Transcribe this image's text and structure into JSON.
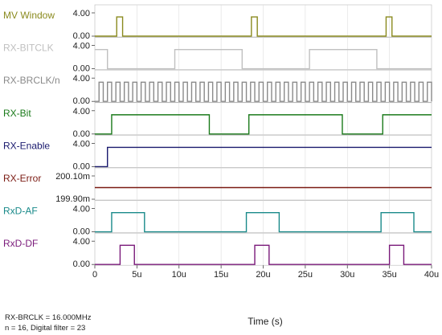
{
  "chart_data": {
    "type": "line",
    "xlabel": "Time (s)",
    "x_ticks": [
      "0",
      "5u",
      "10u",
      "15u",
      "20u",
      "25u",
      "30u",
      "35u",
      "40u"
    ],
    "xlim_us": [
      0,
      40
    ],
    "grid": true,
    "panels": [
      {
        "name": "MV Window",
        "color": "#8a8a1e",
        "y_ticks": [
          "4.00",
          "0.00"
        ],
        "ylim": [
          0,
          4
        ],
        "steps": [
          [
            0,
            0
          ],
          [
            2.6,
            3.3
          ],
          [
            3.3,
            0
          ],
          [
            18.6,
            3.3
          ],
          [
            19.3,
            0
          ],
          [
            34.6,
            3.3
          ],
          [
            35.3,
            0
          ],
          [
            40,
            0
          ]
        ]
      },
      {
        "name": "RX-BITCLK",
        "color": "#c0c0c0",
        "y_ticks": [
          "4.00",
          "0.00"
        ],
        "ylim": [
          0,
          4
        ],
        "steps": [
          [
            0,
            3.3
          ],
          [
            1.5,
            0
          ],
          [
            9.5,
            3.3
          ],
          [
            17.5,
            0
          ],
          [
            25.5,
            3.3
          ],
          [
            33.5,
            0
          ],
          [
            40,
            0
          ]
        ]
      },
      {
        "name": "RX-BRCLK/n",
        "color": "#8a8a8a",
        "y_ticks": [
          "4.00",
          "0.00"
        ],
        "ylim": [
          0,
          4
        ],
        "square": {
          "start": 0,
          "end": 40,
          "period": 1,
          "first_high": 0.5
        }
      },
      {
        "name": "RX-Bit",
        "color": "#1a7a1a",
        "y_ticks": [
          "4.00",
          "0.00"
        ],
        "ylim": [
          0,
          4
        ],
        "steps": [
          [
            0,
            0
          ],
          [
            2,
            3.3
          ],
          [
            13.6,
            0
          ],
          [
            18.3,
            3.3
          ],
          [
            29.4,
            0
          ],
          [
            34.2,
            3.3
          ],
          [
            40,
            3.3
          ]
        ]
      },
      {
        "name": "RX-Enable",
        "color": "#1a1a6e",
        "y_ticks": [
          "4.00",
          "0.00"
        ],
        "ylim": [
          0,
          4
        ],
        "steps": [
          [
            0,
            0
          ],
          [
            1.5,
            3.3
          ],
          [
            40,
            3.3
          ]
        ]
      },
      {
        "name": "RX-Error",
        "color": "#7a1a12",
        "y_ticks": [
          "200.10m",
          "199.90m"
        ],
        "ylim": [
          0.1999,
          0.2001
        ],
        "steps": [
          [
            0,
            0.2
          ],
          [
            40,
            0.2
          ]
        ]
      },
      {
        "name": "RxD-AF",
        "color": "#1a8a8a",
        "y_ticks": [
          "4.00",
          "0.00"
        ],
        "ylim": [
          0,
          4
        ],
        "steps": [
          [
            0,
            0
          ],
          [
            2,
            3.3
          ],
          [
            5.9,
            0
          ],
          [
            18,
            3.3
          ],
          [
            21.9,
            0
          ],
          [
            34,
            3.3
          ],
          [
            37.9,
            0
          ],
          [
            40,
            0
          ]
        ]
      },
      {
        "name": "RxD-DF",
        "color": "#7a1a7a",
        "y_ticks": [
          "4.00",
          "0.00"
        ],
        "ylim": [
          0,
          4
        ],
        "steps": [
          [
            0,
            0
          ],
          [
            3,
            3.3
          ],
          [
            4.7,
            0
          ],
          [
            19,
            3.3
          ],
          [
            20.7,
            0
          ],
          [
            35,
            3.3
          ],
          [
            36.7,
            0
          ],
          [
            40,
            0
          ]
        ]
      }
    ]
  },
  "footer": {
    "line1": "RX-BRCLK = 16.000MHz",
    "line2": "n = 16, Digital filter = 23"
  }
}
